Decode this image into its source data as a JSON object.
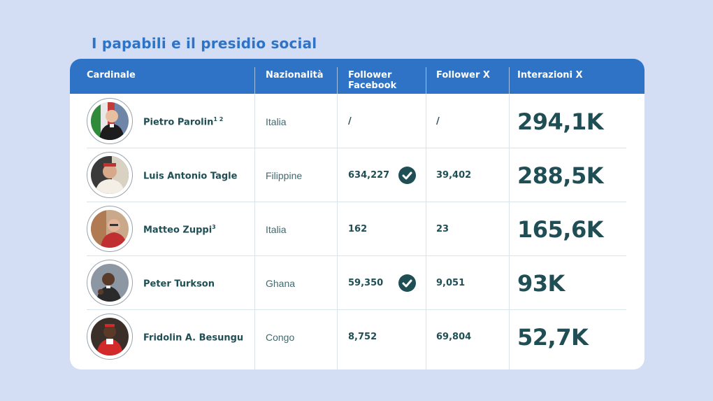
{
  "title": "I papabili e il presidio social",
  "colors": {
    "accent": "#2e73c6",
    "text_dark": "#1f4f55",
    "background": "#d3ddf3"
  },
  "chart_data": {
    "type": "table",
    "title": "I papabili e il presidio social",
    "columns": [
      "Cardinale",
      "Nazionalità",
      "Follower Facebook",
      "Follower X",
      "Interazioni X"
    ],
    "rows": [
      {
        "cardinale": "Pietro Parolin",
        "sup": "1 2",
        "nazionalita": "Italia",
        "follower_facebook": "/",
        "facebook_verified": false,
        "follower_x": "/",
        "interazioni_x": "294,1K"
      },
      {
        "cardinale": "Luis Antonio Tagle",
        "sup": "",
        "nazionalita": "Filippine",
        "follower_facebook": "634,227",
        "facebook_verified": true,
        "follower_x": "39,402",
        "interazioni_x": "288,5K"
      },
      {
        "cardinale": "Matteo Zuppi",
        "sup": "3",
        "nazionalita": "Italia",
        "follower_facebook": "162",
        "facebook_verified": false,
        "follower_x": "23",
        "interazioni_x": "165,6K"
      },
      {
        "cardinale": "Peter Turkson",
        "sup": "",
        "nazionalita": "Ghana",
        "follower_facebook": "59,350",
        "facebook_verified": true,
        "follower_x": "9,051",
        "interazioni_x": "93K"
      },
      {
        "cardinale": "Fridolin A. Besungu",
        "sup": "",
        "nazionalita": "Congo",
        "follower_facebook": "8,752",
        "facebook_verified": false,
        "follower_x": "69,804",
        "interazioni_x": "52,7K"
      }
    ]
  },
  "icons": {
    "verified": "check-circle-icon",
    "avatar": "portrait-photo"
  }
}
